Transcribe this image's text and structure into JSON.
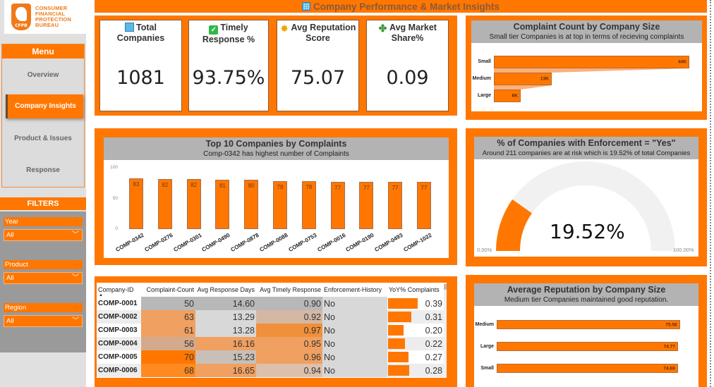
{
  "logo": {
    "badge_text": "CFPB",
    "lines": [
      "CONSUMER",
      "FINANCIAL",
      "PROTECTION",
      "BUREAU"
    ]
  },
  "menu": {
    "title": "Menu",
    "items": [
      {
        "label": "Overview",
        "active": false
      },
      {
        "label": "Company Insights",
        "active": true
      },
      {
        "label": "Product & Issues",
        "active": false
      },
      {
        "label": "Response",
        "active": false
      }
    ]
  },
  "filters": {
    "title": "FILTERS",
    "items": [
      {
        "label": "Year",
        "value": "All"
      },
      {
        "label": "Product",
        "value": "All"
      },
      {
        "label": "Region",
        "value": "All"
      }
    ]
  },
  "header": {
    "title": "Company Performance & Market Insights",
    "icon": "building-icon"
  },
  "kpis": [
    {
      "icon": "building-icon",
      "label_line1": "Total",
      "label_line2": "Companies",
      "value": "1081"
    },
    {
      "icon": "check-icon",
      "label_line1": "Timely",
      "label_line2": "Response %",
      "value": "93.75%"
    },
    {
      "icon": "star-icon",
      "label_line1": "Avg Reputation",
      "label_line2": "Score",
      "value": "75.07"
    },
    {
      "icon": "clover-icon",
      "label_line1": "Avg Market",
      "label_line2": "Share%",
      "value": "0.09"
    }
  ],
  "colors": {
    "accent": "#ff7700",
    "panel_header": "#b3b3b3",
    "sidebar_bg": "#e0e0e0",
    "filter_bg": "#9a9a9a"
  },
  "chart_data": [
    {
      "id": "complaint-by-size",
      "type": "bar",
      "orientation": "horizontal",
      "title": "Complaint Count by Company Size",
      "subtitle": "Small tier Companies is at top in terms of recieving complaints",
      "categories": [
        "Small",
        "Medium",
        "Large"
      ],
      "values": [
        44000,
        13000,
        6000
      ],
      "value_labels": [
        "44K",
        "13K",
        "6K"
      ],
      "xlim": [
        0,
        44000
      ]
    },
    {
      "id": "top10-companies",
      "type": "bar",
      "title": "Top 10 Companies by Complaints",
      "subtitle": "Comp-0342 has highest number of Complaints",
      "categories": [
        "COMP-0342",
        "COMP-0276",
        "COMP-0301",
        "COMP-0490",
        "COMP-0878",
        "COMP-0088",
        "COMP-0753",
        "COMP-0016",
        "COMP-0190",
        "COMP-0493",
        "COMP-1022"
      ],
      "values": [
        83,
        82,
        82,
        81,
        80,
        78,
        78,
        77,
        77,
        77,
        77
      ],
      "yticks": [
        "0",
        "50",
        "100"
      ],
      "ylim": [
        0,
        100
      ],
      "xlabel": "",
      "ylabel": ""
    },
    {
      "id": "enforcement-gauge",
      "type": "gauge",
      "title": "% of Companies with Enforcement = \"Yes\"",
      "subtitle": "Around 211 companies are at risk which is 19.52% of total Companies",
      "value": 19.52,
      "value_label": "19.52%",
      "min_label": "0.00%",
      "max_label": "100.00%",
      "range": [
        0,
        100
      ]
    },
    {
      "id": "reputation-by-size",
      "type": "bar",
      "orientation": "horizontal",
      "title": "Average Reputation by Company Size",
      "subtitle": "Medium tier Companies  maintained good reputation.",
      "categories": [
        "Medium",
        "Large",
        "Small"
      ],
      "values": [
        75.56,
        74.77,
        74.69
      ],
      "value_labels": [
        "75.56",
        "74.77",
        "74.69"
      ],
      "xlim": [
        0,
        78
      ]
    }
  ],
  "table": {
    "columns": [
      "Company-ID",
      "Complaint-Count",
      "Avg Response Days",
      "Avg Timely Response",
      "Enforcement-History",
      "YoY% Complaints"
    ],
    "rows": [
      {
        "id": "COMP-0001",
        "count": "50",
        "days": "14.60",
        "timely": "0.90",
        "enforcement": "No",
        "yoy": "0.39",
        "yoy_value": 0.39
      },
      {
        "id": "COMP-0002",
        "count": "63",
        "days": "13.29",
        "timely": "0.92",
        "enforcement": "No",
        "yoy": "0.31",
        "yoy_value": 0.31
      },
      {
        "id": "COMP-0003",
        "count": "61",
        "days": "13.28",
        "timely": "0.97",
        "enforcement": "No",
        "yoy": "0.20",
        "yoy_value": 0.2
      },
      {
        "id": "COMP-0004",
        "count": "56",
        "days": "16.16",
        "timely": "0.95",
        "enforcement": "No",
        "yoy": "0.22",
        "yoy_value": 0.22
      },
      {
        "id": "COMP-0005",
        "count": "70",
        "days": "15.23",
        "timely": "0.96",
        "enforcement": "No",
        "yoy": "0.27",
        "yoy_value": 0.27
      },
      {
        "id": "COMP-0006",
        "count": "68",
        "days": "16.65",
        "timely": "0.94",
        "enforcement": "No",
        "yoy": "0.28",
        "yoy_value": 0.28
      }
    ],
    "cell_colors": {
      "count": [
        "#b8b8b8",
        "#f0a060",
        "#f0a060",
        "#d4aa8c",
        "#ff7700",
        "#ff8a20"
      ],
      "days": [
        "#b8b8b8",
        "#d8d8d8",
        "#d8d8d8",
        "#f0a060",
        "#c8c0b8",
        "#f0a060"
      ],
      "timely": [
        "#b8b8b8",
        "#d4b8a4",
        "#f0903a",
        "#f0a060",
        "#f0a060",
        "#dcc0ac"
      ],
      "enforcement": [
        "#d8d8d8",
        "#d8d8d8",
        "#d8d8d8",
        "#d8d8d8",
        "#d8d8d8",
        "#d8d8d8"
      ],
      "yoy_bg": [
        "#ffffff",
        "#ededed",
        "#ffffff",
        "#ededed",
        "#ffffff",
        "#ededed"
      ]
    }
  }
}
